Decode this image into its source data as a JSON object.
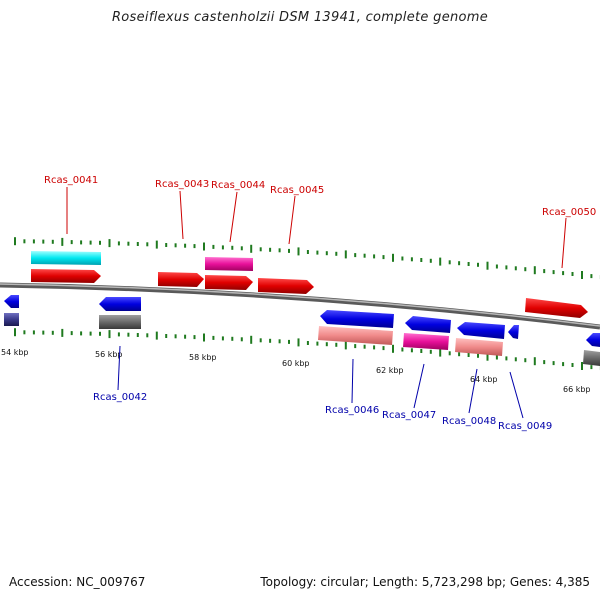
{
  "title": "Roseiflexus castenholzii DSM 13941, complete genome",
  "footer": {
    "accession": "Accession: NC_009767",
    "info": "Topology: circular; Length: 5,723,298 bp; Genes: 4,385"
  },
  "colors": {
    "forward_label": "#cc0000",
    "reverse_label": "#0000aa",
    "backbone": "#8a8a8a",
    "tick_mark": "#1f7a1f"
  },
  "kbp_labels": [
    "54 kbp",
    "56 kbp",
    "58 kbp",
    "60 kbp",
    "62 kbp",
    "64 kbp",
    "66 kbp"
  ],
  "genes_forward": [
    {
      "label": "Rcas_0041"
    },
    {
      "label": "Rcas_0043"
    },
    {
      "label": "Rcas_0044"
    },
    {
      "label": "Rcas_0045"
    },
    {
      "label": "Rcas_0050"
    }
  ],
  "genes_reverse": [
    {
      "label": "Rcas_0042"
    },
    {
      "label": "Rcas_0046"
    },
    {
      "label": "Rcas_0047"
    },
    {
      "label": "Rcas_0048"
    },
    {
      "label": "Rcas_0049"
    }
  ]
}
